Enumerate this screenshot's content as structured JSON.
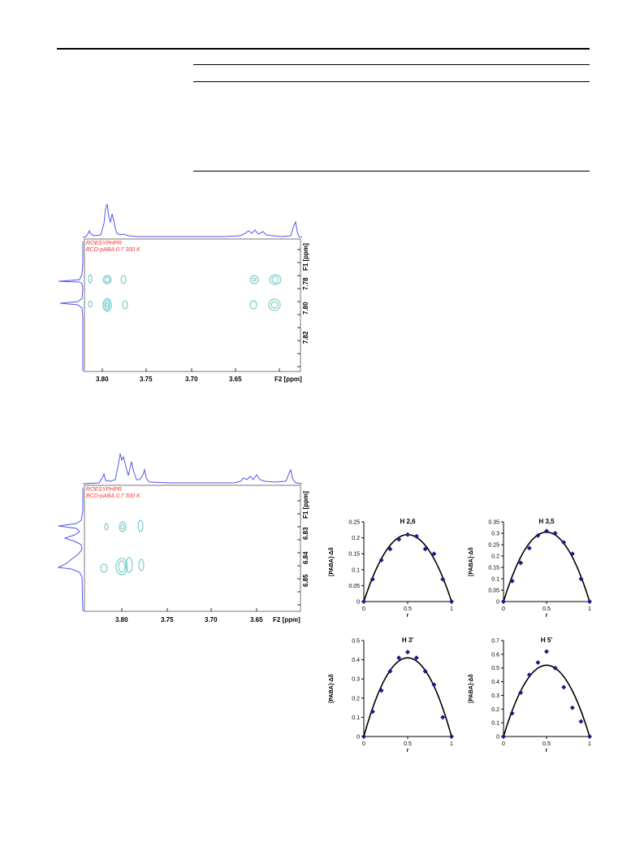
{
  "nmr_top": {
    "label_line1": "ROESYPHPR",
    "label_line2": "BCD-pABA 0.7 300 K",
    "f1_axis_label": "F1 [ppm]",
    "f2_axis_label": "F2 [ppm]",
    "f2_ticks": [
      "3.80",
      "3.75",
      "3.70",
      "3.65"
    ],
    "f1_ticks": [
      "7.78",
      "7.80",
      "7.82"
    ],
    "colors": {
      "contour": "#5ec4c4",
      "projection": "#5555ee"
    }
  },
  "nmr_bottom": {
    "label_line1": "ROESYPHPR",
    "label_line2": "BCD-pABA 0.7 300 K",
    "f1_axis_label": "F1 [ppm]",
    "f2_axis_label": "F2 [ppm]",
    "f2_ticks": [
      "3.80",
      "3.75",
      "3.70",
      "3.65"
    ],
    "f1_ticks": [
      "6.83",
      "6.84",
      "6.85"
    ],
    "colors": {
      "contour": "#5ec4c4",
      "projection": "#5555ee"
    }
  },
  "chart_data": [
    {
      "type": "scatter",
      "title": "H 2,6",
      "xlabel": "r",
      "ylabel": "[PABA]·Δδ",
      "xlim": [
        0,
        1
      ],
      "ylim": [
        0,
        0.25
      ],
      "xticks": [
        "0",
        "0.5",
        "1"
      ],
      "yticks": [
        "0",
        "0.05",
        "0.1",
        "0.15",
        "0.2",
        "0.25"
      ],
      "points": [
        [
          0,
          0
        ],
        [
          0.1,
          0.07
        ],
        [
          0.2,
          0.13
        ],
        [
          0.3,
          0.165
        ],
        [
          0.4,
          0.195
        ],
        [
          0.5,
          0.21
        ],
        [
          0.6,
          0.205
        ],
        [
          0.7,
          0.165
        ],
        [
          0.8,
          0.15
        ],
        [
          0.9,
          0.07
        ],
        [
          1.0,
          0
        ]
      ],
      "fit_peak": 0.21,
      "colors": {
        "points": "#1a1a8c",
        "fit": "#000000"
      }
    },
    {
      "type": "scatter",
      "title": "H 3,5",
      "xlabel": "r",
      "ylabel": "[PABA]·Δδ",
      "xlim": [
        0,
        1
      ],
      "ylim": [
        0,
        0.35
      ],
      "xticks": [
        "0",
        "0.5",
        "1"
      ],
      "yticks": [
        "0",
        "0.05",
        "0.1",
        "0.15",
        "0.2",
        "0.25",
        "0.3",
        "0.35"
      ],
      "points": [
        [
          0,
          0
        ],
        [
          0.1,
          0.09
        ],
        [
          0.2,
          0.17
        ],
        [
          0.3,
          0.235
        ],
        [
          0.4,
          0.29
        ],
        [
          0.5,
          0.31
        ],
        [
          0.6,
          0.3
        ],
        [
          0.7,
          0.26
        ],
        [
          0.8,
          0.21
        ],
        [
          0.9,
          0.1
        ],
        [
          1.0,
          0
        ]
      ],
      "fit_peak": 0.305,
      "colors": {
        "points": "#1a1a8c",
        "fit": "#000000"
      }
    },
    {
      "type": "scatter",
      "title": "H 3'",
      "xlabel": "r",
      "ylabel": "[PABA]·Δδ",
      "xlim": [
        0,
        1
      ],
      "ylim": [
        0,
        0.5
      ],
      "xticks": [
        "0",
        "0.5",
        "1"
      ],
      "yticks": [
        "0",
        "0.1",
        "0.2",
        "0.3",
        "0.4",
        "0.5"
      ],
      "points": [
        [
          0,
          0
        ],
        [
          0.1,
          0.13
        ],
        [
          0.2,
          0.24
        ],
        [
          0.3,
          0.34
        ],
        [
          0.4,
          0.41
        ],
        [
          0.5,
          0.44
        ],
        [
          0.6,
          0.41
        ],
        [
          0.7,
          0.34
        ],
        [
          0.8,
          0.27
        ],
        [
          0.9,
          0.1
        ],
        [
          1.0,
          0
        ]
      ],
      "fit_peak": 0.41,
      "colors": {
        "points": "#1a1a8c",
        "fit": "#000000"
      }
    },
    {
      "type": "scatter",
      "title": "H 5'",
      "xlabel": "r",
      "ylabel": "[PABA]·Δδ",
      "xlim": [
        0,
        1
      ],
      "ylim": [
        0,
        0.7
      ],
      "xticks": [
        "0",
        "0.5",
        "1"
      ],
      "yticks": [
        "0",
        "0.1",
        "0.2",
        "0.3",
        "0.4",
        "0.5",
        "0.6",
        "0.7"
      ],
      "points": [
        [
          0,
          0
        ],
        [
          0.1,
          0.17
        ],
        [
          0.2,
          0.32
        ],
        [
          0.3,
          0.45
        ],
        [
          0.4,
          0.54
        ],
        [
          0.5,
          0.62
        ],
        [
          0.6,
          0.5
        ],
        [
          0.7,
          0.36
        ],
        [
          0.8,
          0.21
        ],
        [
          0.9,
          0.11
        ],
        [
          1.0,
          0
        ]
      ],
      "fit_peak": 0.52,
      "colors": {
        "points": "#1a1a8c",
        "fit": "#000000"
      }
    }
  ]
}
